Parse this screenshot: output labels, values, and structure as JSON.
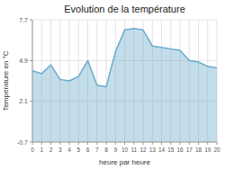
{
  "chart_data": {
    "type": "area",
    "title": "Evolution de la température",
    "xlabel": "heure par heure",
    "ylabel": "Température en °C",
    "x": [
      0,
      1,
      2,
      3,
      4,
      5,
      6,
      7,
      8,
      9,
      10,
      11,
      12,
      13,
      14,
      15,
      16,
      17,
      18,
      19,
      20
    ],
    "values": [
      4.2,
      4.0,
      4.6,
      3.6,
      3.5,
      3.8,
      4.9,
      3.2,
      3.1,
      5.5,
      7.0,
      7.1,
      7.0,
      5.9,
      5.8,
      5.7,
      5.6,
      4.9,
      4.8,
      4.5,
      4.4
    ],
    "color": "#6aabcc",
    "xlim": [
      0,
      20
    ],
    "xticks": [
      0,
      1,
      2,
      3,
      4,
      5,
      6,
      7,
      8,
      9,
      10,
      11,
      12,
      13,
      14,
      15,
      16,
      17,
      18,
      19,
      20
    ],
    "ylim": [
      -0.7,
      7.7
    ],
    "yticks": [
      -0.7,
      2.1,
      4.9,
      7.7
    ],
    "grid": true
  }
}
